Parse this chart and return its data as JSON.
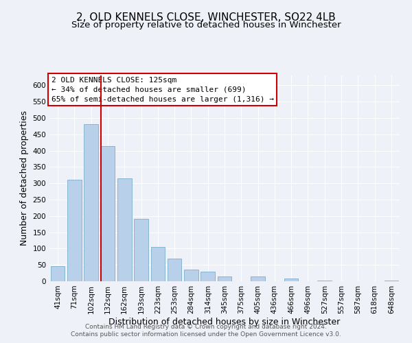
{
  "title": "2, OLD KENNELS CLOSE, WINCHESTER, SO22 4LB",
  "subtitle": "Size of property relative to detached houses in Winchester",
  "xlabel": "Distribution of detached houses by size in Winchester",
  "ylabel": "Number of detached properties",
  "bar_labels": [
    "41sqm",
    "71sqm",
    "102sqm",
    "132sqm",
    "162sqm",
    "193sqm",
    "223sqm",
    "253sqm",
    "284sqm",
    "314sqm",
    "345sqm",
    "375sqm",
    "405sqm",
    "436sqm",
    "466sqm",
    "496sqm",
    "527sqm",
    "557sqm",
    "587sqm",
    "618sqm",
    "648sqm"
  ],
  "bar_values": [
    46,
    311,
    480,
    414,
    314,
    192,
    105,
    69,
    35,
    30,
    14,
    0,
    14,
    0,
    8,
    0,
    2,
    0,
    0,
    0,
    2
  ],
  "bar_color": "#b8d0ea",
  "bar_edge_color": "#7aaecc",
  "ylim": [
    0,
    630
  ],
  "yticks": [
    0,
    50,
    100,
    150,
    200,
    250,
    300,
    350,
    400,
    450,
    500,
    550,
    600
  ],
  "marker_line_color": "#cc0000",
  "annotation_line1": "2 OLD KENNELS CLOSE: 125sqm",
  "annotation_line2": "← 34% of detached houses are smaller (699)",
  "annotation_line3": "65% of semi-detached houses are larger (1,316) →",
  "annotation_box_color": "#ffffff",
  "annotation_box_edge": "#cc0000",
  "footer_line1": "Contains HM Land Registry data © Crown copyright and database right 2024.",
  "footer_line2": "Contains public sector information licensed under the Open Government Licence v3.0.",
  "background_color": "#eef2f8",
  "grid_color": "#ffffff",
  "title_fontsize": 11,
  "subtitle_fontsize": 9.5,
  "axis_label_fontsize": 9,
  "tick_fontsize": 7.5,
  "annotation_fontsize": 8,
  "footer_fontsize": 6.5
}
